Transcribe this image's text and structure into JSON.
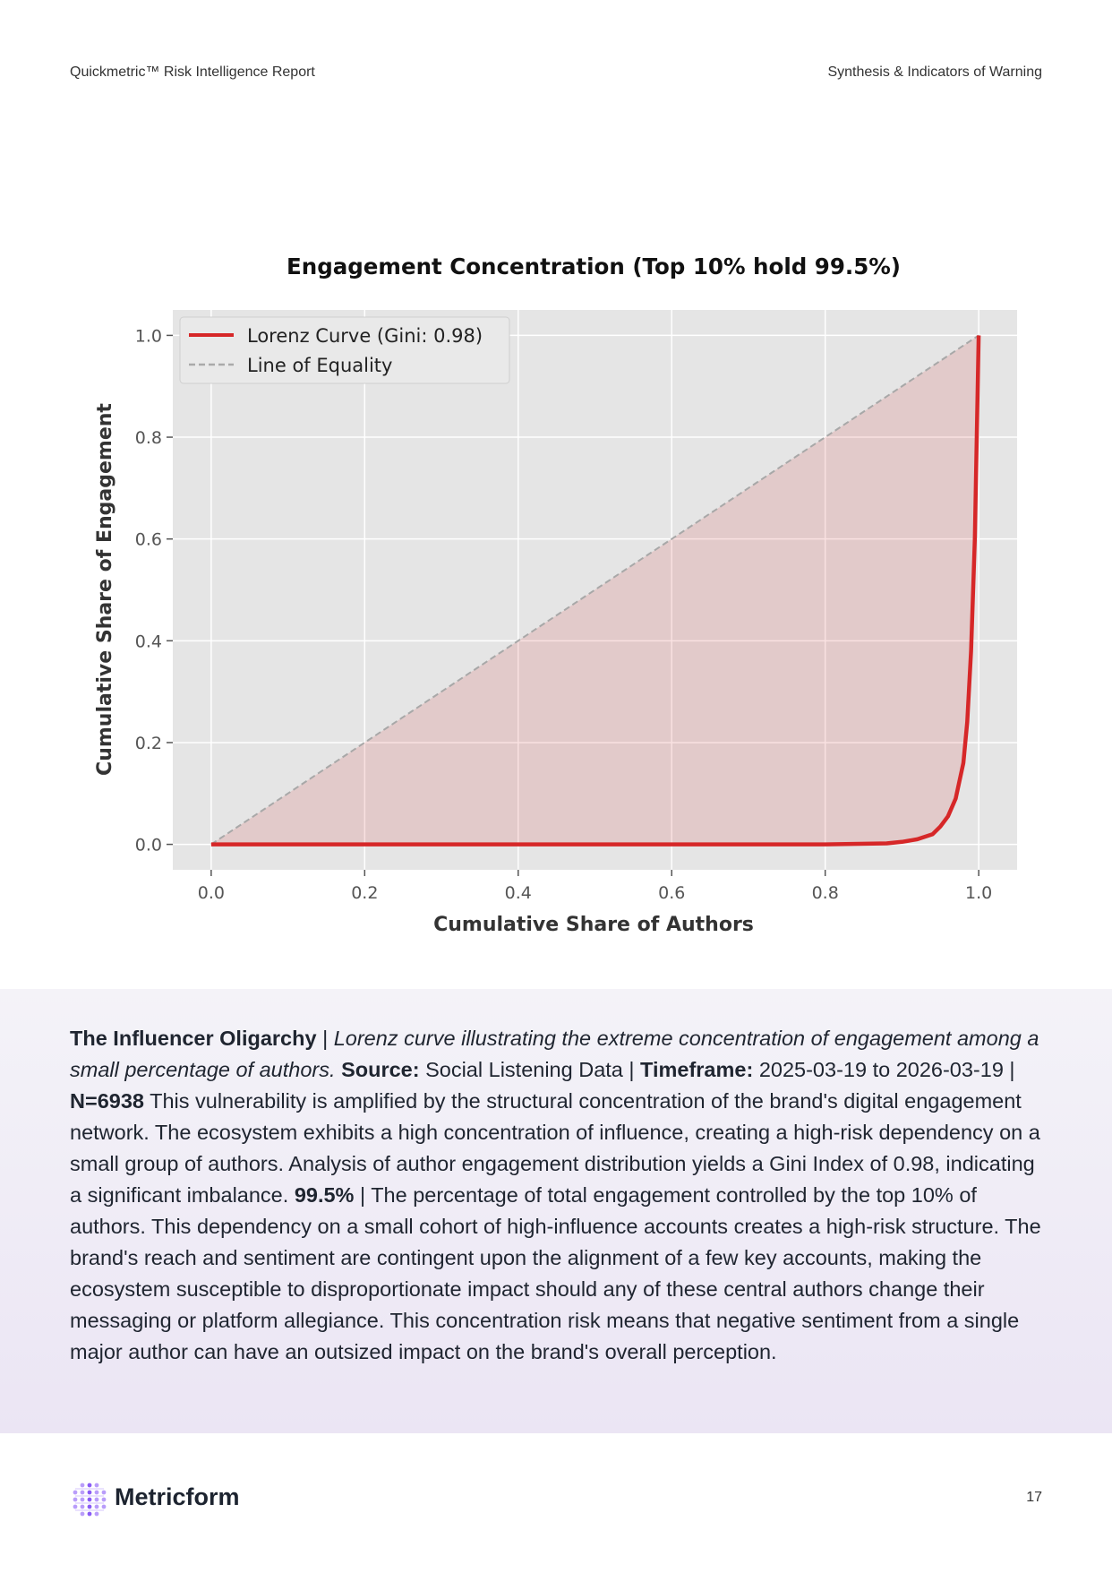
{
  "header": {
    "left": "Quickmetric™ Risk Intelligence Report",
    "right": "Synthesis & Indicators of Warning"
  },
  "chart_data": {
    "type": "line",
    "title": "Engagement Concentration (Top 10% hold 99.5%)",
    "xlabel": "Cumulative Share of Authors",
    "ylabel": "Cumulative Share of Engagement",
    "xlim": [
      -0.05,
      1.05
    ],
    "ylim": [
      -0.05,
      1.05
    ],
    "xticks": [
      "0.0",
      "0.2",
      "0.4",
      "0.6",
      "0.8",
      "1.0"
    ],
    "yticks": [
      "0.0",
      "0.2",
      "0.4",
      "0.6",
      "0.8",
      "1.0"
    ],
    "grid": true,
    "legend_position": "top-left",
    "series": [
      {
        "name": "Lorenz Curve (Gini: 0.98)",
        "style": "solid",
        "color": "#d62728",
        "fill": true,
        "x": [
          0.0,
          0.5,
          0.8,
          0.88,
          0.9,
          0.92,
          0.94,
          0.95,
          0.96,
          0.97,
          0.98,
          0.985,
          0.99,
          0.995,
          1.0
        ],
        "y": [
          0.0,
          0.0,
          0.0,
          0.002,
          0.005,
          0.01,
          0.02,
          0.035,
          0.055,
          0.09,
          0.16,
          0.24,
          0.38,
          0.6,
          1.0
        ]
      },
      {
        "name": "Line of Equality",
        "style": "dashed",
        "color": "#999999",
        "x": [
          0.0,
          1.0
        ],
        "y": [
          0.0,
          1.0
        ]
      }
    ]
  },
  "caption": {
    "heading": "The Influencer Oligarchy",
    "sep1": " | ",
    "italic": "Lorenz curve illustrating the extreme concentration of engagement among a small percentage of authors.",
    "source_label": "Source:",
    "source_value": " Social Listening Data | ",
    "timeframe_label": "Timeframe:",
    "timeframe_value": " 2025-03-19 to 2026-03-19 | ",
    "n_label": "N=6938",
    "body1": " This vulnerability is amplified by the structural concentration of the brand's digital engagement network. The ecosystem exhibits a high concentration of influence, creating a high-risk dependency on a small group of authors. Analysis of author engagement distribution yields a Gini Index of 0.98, indicating a significant imbalance. ",
    "stat": "99.5%",
    "body2": " | The percentage of total engagement controlled by the top 10% of authors. This dependency on a small cohort of high-influence accounts creates a high-risk structure. The brand's reach and sentiment are contingent upon the alignment of a few key accounts, making the ecosystem susceptible to disproportionate impact should any of these central authors change their messaging or platform allegiance. This concentration risk means that negative sentiment from a single major author can have an outsized impact on the brand's overall perception."
  },
  "footer": {
    "brand": "Metricform",
    "page_number": "17",
    "logo_color": "#8a5cf6"
  }
}
